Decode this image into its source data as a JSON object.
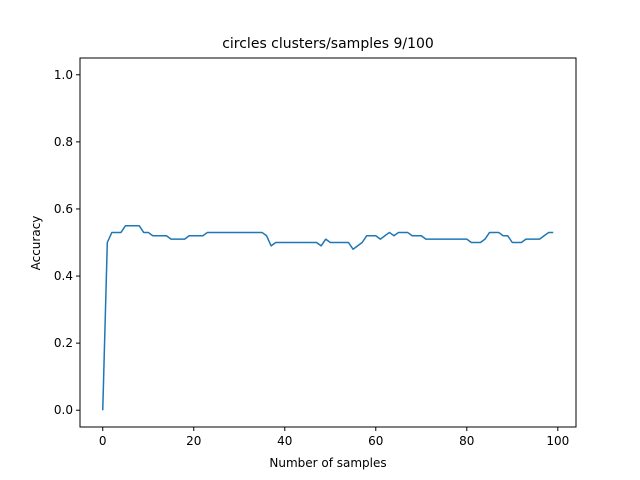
{
  "chart_data": {
    "type": "line",
    "title": "circles clusters/samples 9/100",
    "xlabel": "Number of samples",
    "ylabel": "Accuracy",
    "xlim": [
      -5,
      104
    ],
    "ylim": [
      -0.05,
      1.05
    ],
    "xticks": [
      0,
      20,
      40,
      60,
      80,
      100
    ],
    "yticks": [
      0.0,
      0.2,
      0.4,
      0.6,
      0.8,
      1.0
    ],
    "xtick_labels": [
      "0",
      "20",
      "40",
      "60",
      "80",
      "100"
    ],
    "ytick_labels": [
      "0.0",
      "0.2",
      "0.4",
      "0.6",
      "0.8",
      "1.0"
    ],
    "grid": false,
    "series": [
      {
        "color": "#1f77b4",
        "x": [
          0,
          1,
          2,
          3,
          4,
          5,
          6,
          7,
          8,
          9,
          10,
          11,
          12,
          13,
          14,
          15,
          16,
          17,
          18,
          19,
          20,
          21,
          22,
          23,
          24,
          25,
          26,
          27,
          28,
          29,
          30,
          31,
          32,
          33,
          34,
          35,
          36,
          37,
          38,
          39,
          40,
          41,
          42,
          43,
          44,
          45,
          46,
          47,
          48,
          49,
          50,
          51,
          52,
          53,
          54,
          55,
          56,
          57,
          58,
          59,
          60,
          61,
          62,
          63,
          64,
          65,
          66,
          67,
          68,
          69,
          70,
          71,
          72,
          73,
          74,
          75,
          76,
          77,
          78,
          79,
          80,
          81,
          82,
          83,
          84,
          85,
          86,
          87,
          88,
          89,
          90,
          91,
          92,
          93,
          94,
          95,
          96,
          97,
          98,
          99
        ],
        "y": [
          0.0,
          0.5,
          0.53,
          0.53,
          0.53,
          0.55,
          0.55,
          0.55,
          0.55,
          0.53,
          0.53,
          0.52,
          0.52,
          0.52,
          0.52,
          0.51,
          0.51,
          0.51,
          0.51,
          0.52,
          0.52,
          0.52,
          0.52,
          0.53,
          0.53,
          0.53,
          0.53,
          0.53,
          0.53,
          0.53,
          0.53,
          0.53,
          0.53,
          0.53,
          0.53,
          0.53,
          0.52,
          0.49,
          0.5,
          0.5,
          0.5,
          0.5,
          0.5,
          0.5,
          0.5,
          0.5,
          0.5,
          0.5,
          0.49,
          0.51,
          0.5,
          0.5,
          0.5,
          0.5,
          0.5,
          0.48,
          0.49,
          0.5,
          0.52,
          0.52,
          0.52,
          0.51,
          0.52,
          0.53,
          0.52,
          0.53,
          0.53,
          0.53,
          0.52,
          0.52,
          0.52,
          0.51,
          0.51,
          0.51,
          0.51,
          0.51,
          0.51,
          0.51,
          0.51,
          0.51,
          0.51,
          0.5,
          0.5,
          0.5,
          0.51,
          0.53,
          0.53,
          0.53,
          0.52,
          0.52,
          0.5,
          0.5,
          0.5,
          0.51,
          0.51,
          0.51,
          0.51,
          0.52,
          0.53,
          0.53
        ]
      }
    ]
  }
}
